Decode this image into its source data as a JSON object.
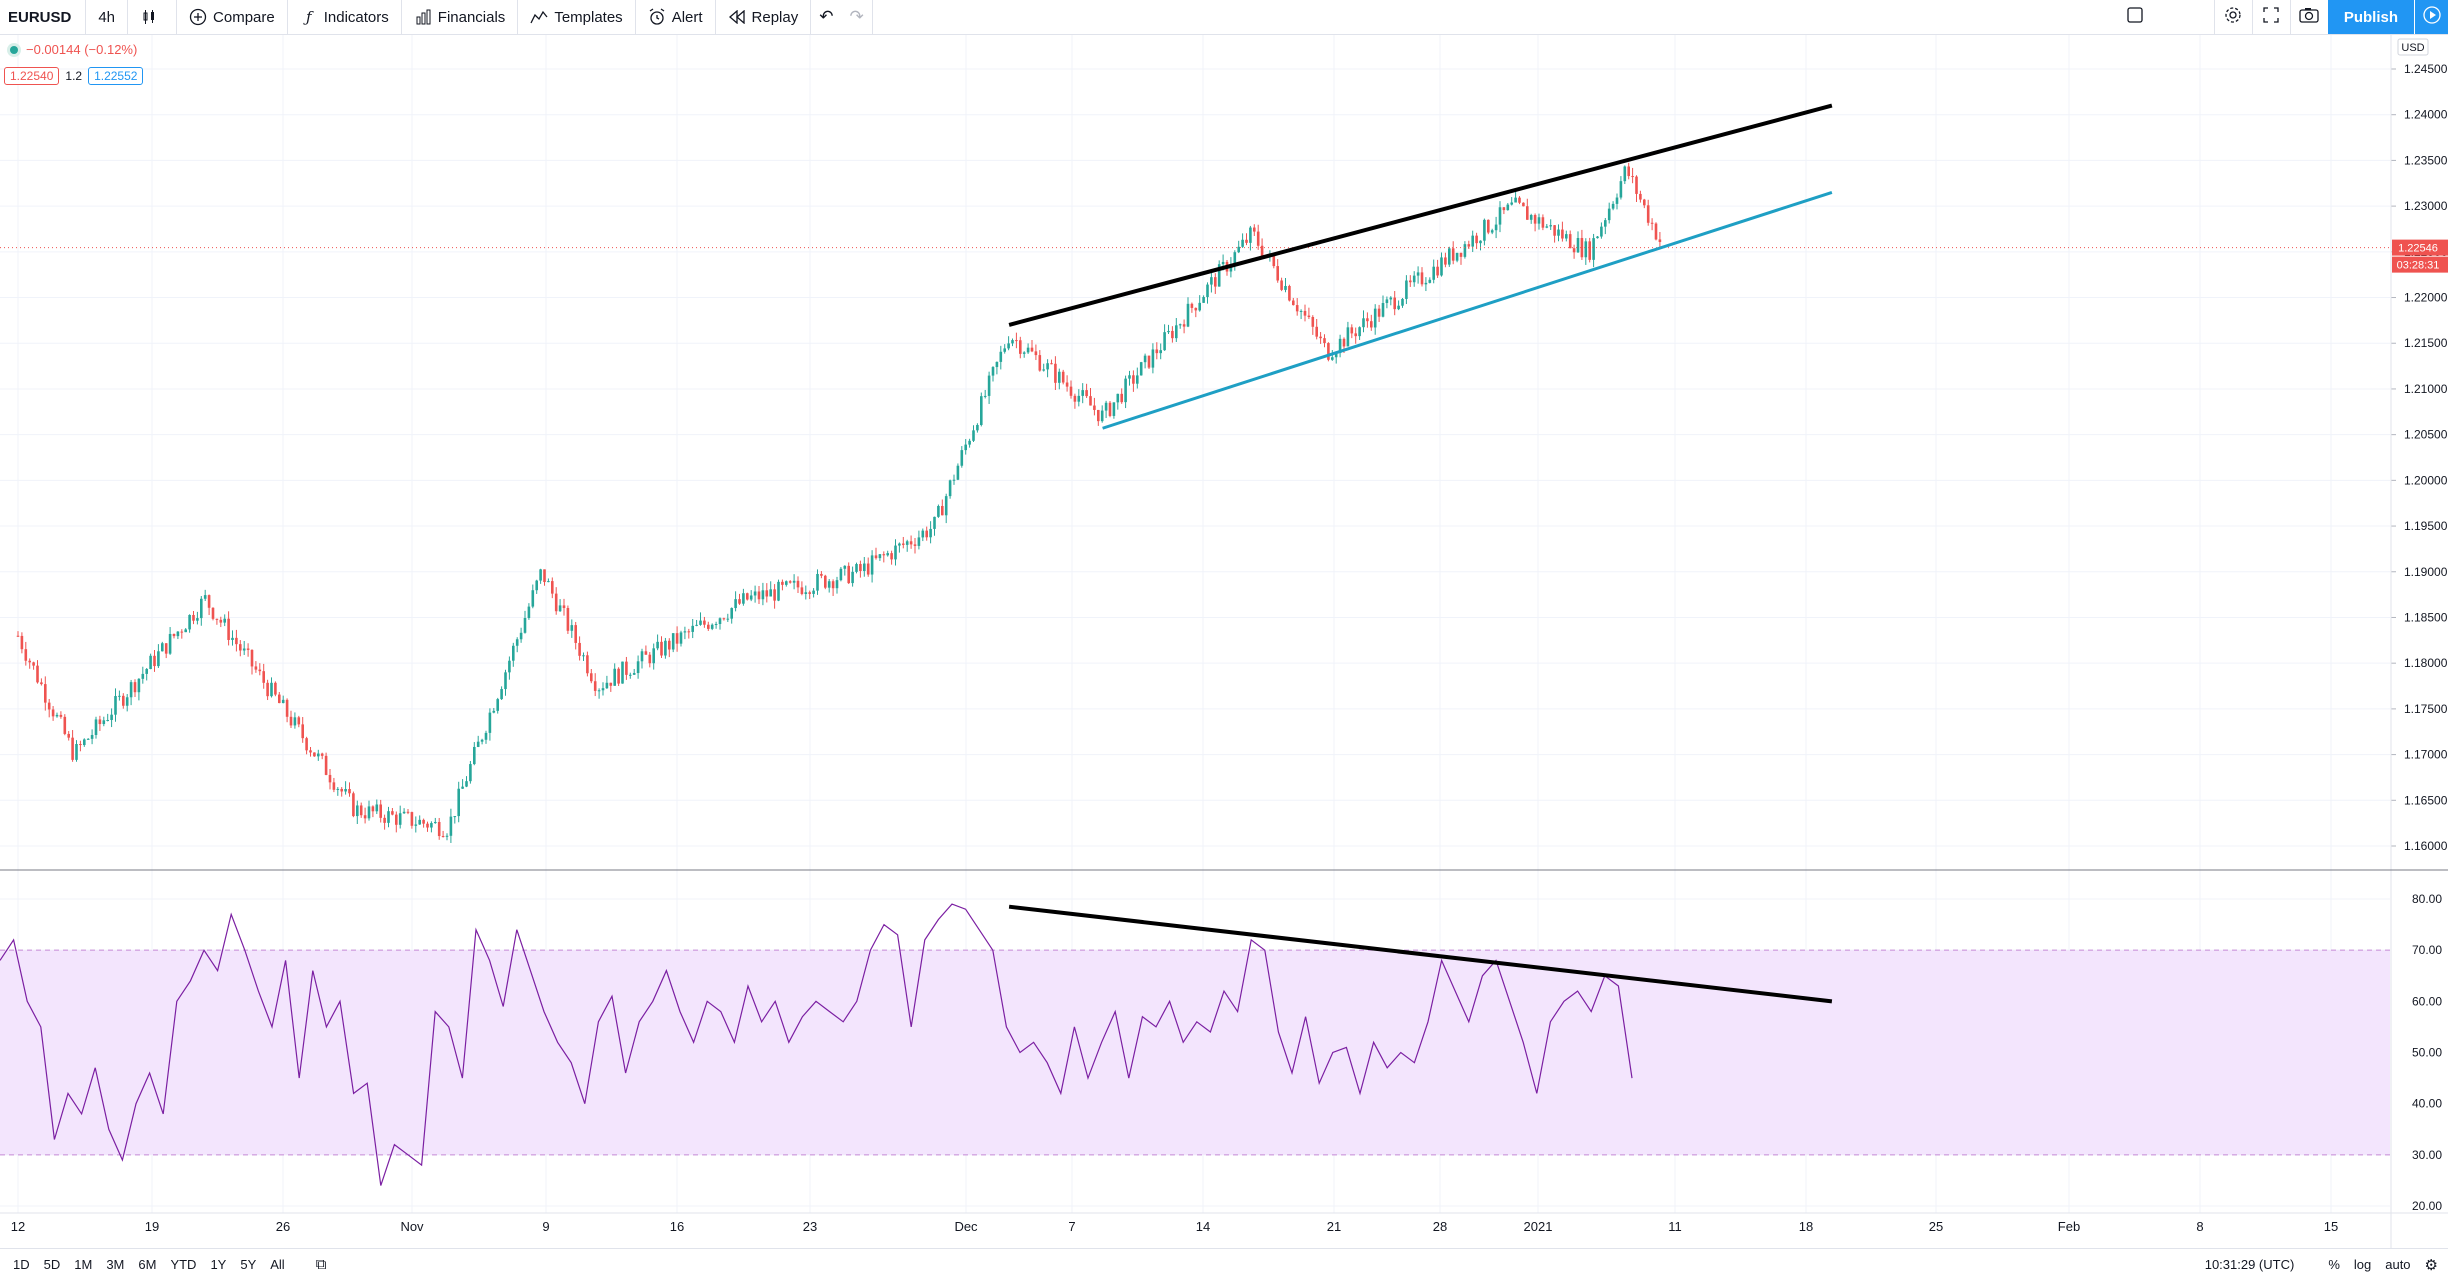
{
  "toolbar": {
    "symbol": "EURUSD",
    "interval": "4h",
    "compare": "Compare",
    "indicators": "Indicators",
    "financials": "Financials",
    "templates": "Templates",
    "alert": "Alert",
    "replay": "Replay",
    "publish": "Publish"
  },
  "legend": {
    "change": "−0.00144 (−0.12%)",
    "bid": "1.22540",
    "spread": "1.2",
    "ask": "1.22552"
  },
  "price_axis": {
    "currency": "USD",
    "ticks": [
      "1.24500",
      "1.24000",
      "1.23500",
      "1.23000",
      "1.22500",
      "1.22000",
      "1.21500",
      "1.21000",
      "1.20500",
      "1.20000",
      "1.19500",
      "1.19000",
      "1.18500",
      "1.18000",
      "1.17500",
      "1.17000",
      "1.16500",
      "1.16000"
    ],
    "last_price": "1.22546",
    "countdown": "03:28:31"
  },
  "rsi_axis": {
    "ticks": [
      "80.00",
      "70.00",
      "60.00",
      "50.00",
      "40.00",
      "30.00",
      "20.00"
    ]
  },
  "time_axis": {
    "labels": [
      "12",
      "19",
      "26",
      "Nov",
      "9",
      "16",
      "23",
      "Dec",
      "7",
      "14",
      "21",
      "28",
      "2021",
      "11",
      "18",
      "25",
      "Feb",
      "8",
      "15"
    ]
  },
  "bottom": {
    "ranges": [
      "1D",
      "5D",
      "1M",
      "3M",
      "6M",
      "YTD",
      "1Y",
      "5Y",
      "All"
    ],
    "clock": "10:31:29 (UTC)",
    "percent": "%",
    "log": "log",
    "auto": "auto"
  },
  "colors": {
    "up": "#26a69a",
    "down": "#ef5350",
    "rsi_line": "#7b1fa2",
    "rsi_band": "#f3e5fd",
    "trend_upper": "#000000",
    "trend_lower": "#1e9fc4",
    "accent": "#2196f3"
  },
  "chart_data": [
    {
      "type": "candlestick",
      "title": "",
      "series": [
        {
          "name": "EURUSD",
          "ohlc_anchor_points": [
            {
              "x": "Oct 12",
              "y": 1.183
            },
            {
              "x": "Oct 15",
              "y": 1.17
            },
            {
              "x": "Oct 22",
              "y": 1.187
            },
            {
              "x": "Oct 30",
              "y": 1.164
            },
            {
              "x": "Nov 4",
              "y": 1.162
            },
            {
              "x": "Nov 9",
              "y": 1.19
            },
            {
              "x": "Nov 12",
              "y": 1.1775
            },
            {
              "x": "Nov 20",
              "y": 1.187
            },
            {
              "x": "Nov 26",
              "y": 1.19
            },
            {
              "x": "Nov 30",
              "y": 1.195
            },
            {
              "x": "Dec 4",
              "y": 1.216
            },
            {
              "x": "Dec 9",
              "y": 1.207
            },
            {
              "x": "Dec 17",
              "y": 1.227
            },
            {
              "x": "Dec 21",
              "y": 1.214
            },
            {
              "x": "Dec 31",
              "y": 1.23
            },
            {
              "x": "Jan 4",
              "y": 1.225
            },
            {
              "x": "Jan 6",
              "y": 1.234
            },
            {
              "x": "Jan 8",
              "y": 1.2254
            }
          ]
        }
      ],
      "ylim": [
        1.1575,
        1.2475
      ],
      "trendlines": [
        {
          "name": "upper",
          "from": {
            "x": "Dec 4",
            "y": 1.217
          },
          "to": {
            "x": "Jan 17",
            "y": 1.241
          }
        },
        {
          "name": "lower",
          "from": {
            "x": "Dec 9",
            "y": 1.2057
          },
          "to": {
            "x": "Jan 17",
            "y": 1.2315
          }
        }
      ]
    },
    {
      "type": "line",
      "title": "",
      "series": [
        {
          "name": "",
          "values": [
            68,
            72,
            60,
            55,
            33,
            42,
            38,
            47,
            35,
            29,
            40,
            46,
            38,
            60,
            64,
            70,
            66,
            77,
            70,
            62,
            55,
            68,
            45,
            66,
            55,
            60,
            42,
            44,
            24,
            32,
            30,
            28,
            58,
            55,
            45,
            74,
            68,
            59,
            74,
            66,
            58,
            52,
            48,
            40,
            56,
            61,
            46,
            56,
            60,
            66,
            58,
            52,
            60,
            58,
            52,
            63,
            56,
            60,
            52,
            57,
            60,
            58,
            56,
            60,
            70,
            75,
            73,
            55,
            72,
            76,
            79,
            78,
            74,
            70,
            55,
            50,
            52,
            48,
            42,
            55,
            45,
            52,
            58,
            45,
            57,
            55,
            60,
            52,
            56,
            54,
            62,
            58,
            72,
            70,
            54,
            46,
            57,
            44,
            50,
            51,
            42,
            52,
            47,
            50,
            48,
            56,
            68,
            62,
            56,
            65,
            68,
            60,
            52,
            42,
            56,
            60,
            62,
            58,
            65,
            63,
            45
          ]
        }
      ],
      "ylim": [
        20,
        85
      ],
      "bands": [
        30,
        70
      ],
      "trendlines": [
        {
          "name": "rsi-divergence",
          "from": {
            "x": "Dec 4",
            "y": 78.5
          },
          "to": {
            "x": "Jan 17",
            "y": 60
          }
        }
      ]
    }
  ]
}
